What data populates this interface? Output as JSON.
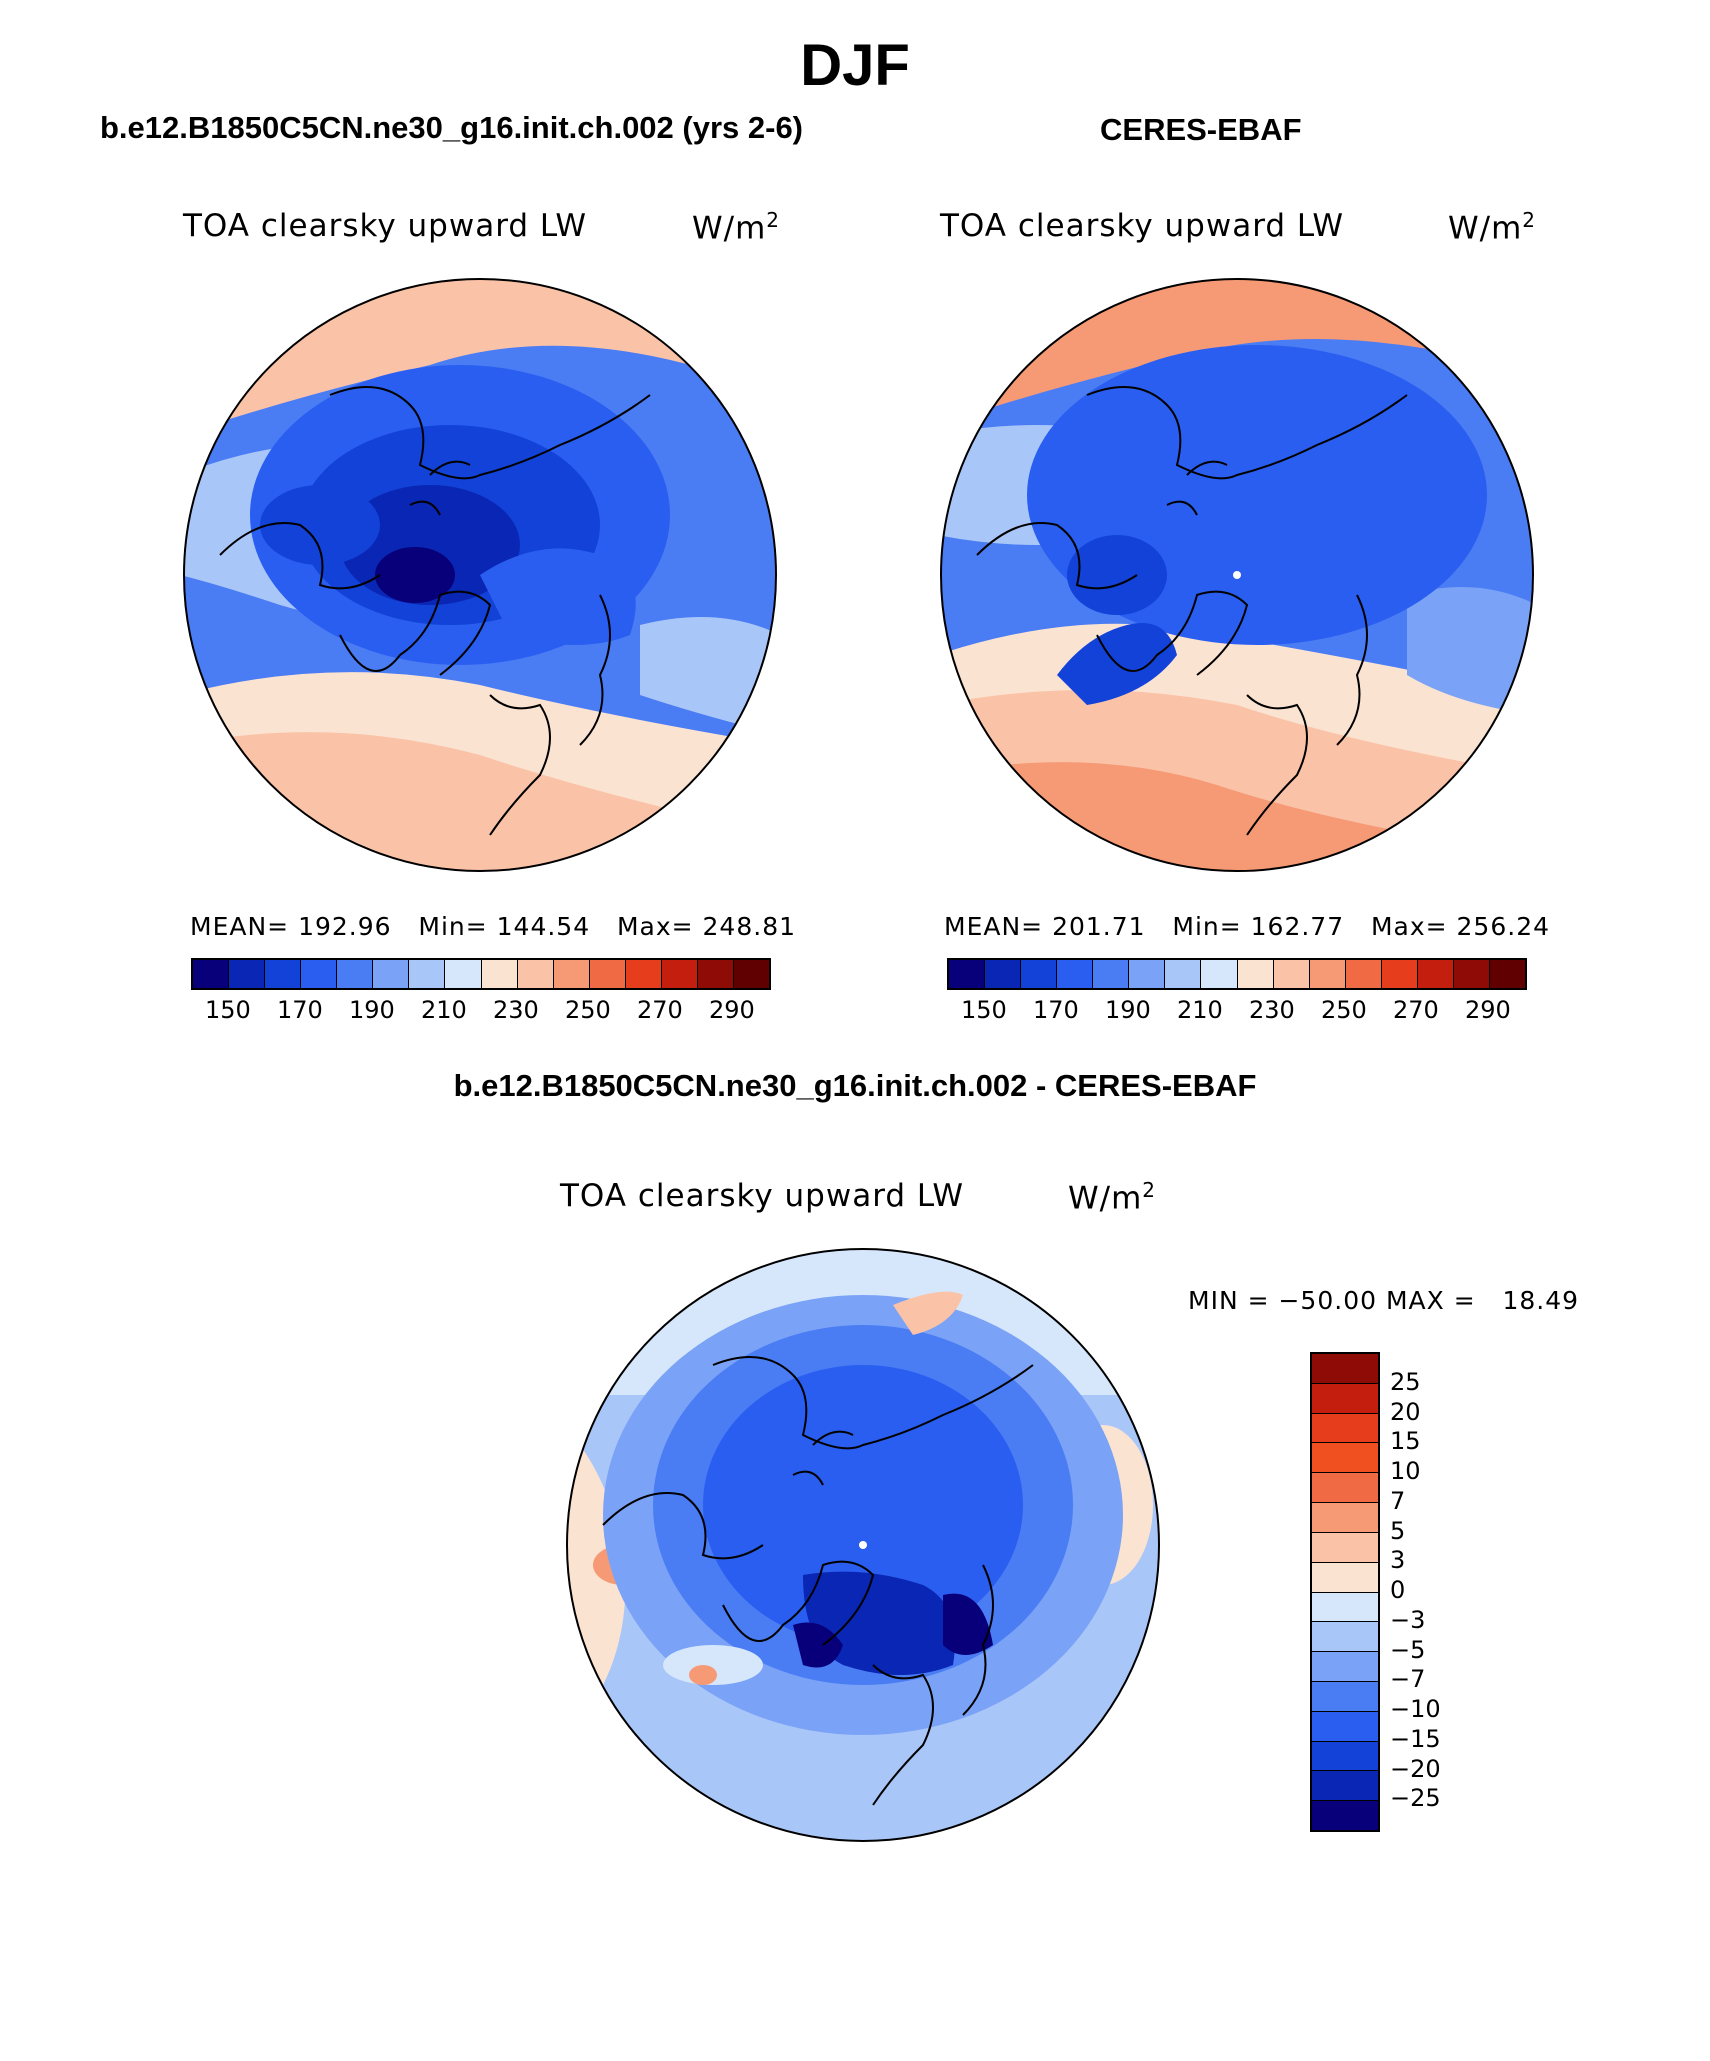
{
  "page": {
    "title": "DJF",
    "left_case": "b.e12.B1850C5CN.ne30_g16.init.ch.002 (yrs 2-6)",
    "right_case": "CERES-EBAF",
    "diff_case": "b.e12.B1850C5CN.ne30_g16.init.ch.002 - CERES-EBAF"
  },
  "panels": {
    "model": {
      "variable": "TOA clearsky upward LW",
      "units_base": "W/m",
      "units_exp": "2",
      "stats": "MEAN= 192.96   Min= 144.54   Max= 248.81"
    },
    "obs": {
      "variable": "TOA clearsky upward LW",
      "units_base": "W/m",
      "units_exp": "2",
      "stats": "MEAN= 201.71   Min= 162.77   Max= 256.24"
    },
    "diff": {
      "variable": "TOA clearsky upward LW",
      "units_base": "W/m",
      "units_exp": "2",
      "stats": "MIN = −50.00 MAX =   18.49"
    }
  },
  "colorbar_main": {
    "labels": [
      "150",
      "170",
      "190",
      "210",
      "230",
      "250",
      "270",
      "290"
    ],
    "colors": [
      "#08007a",
      "#0a26b4",
      "#1242d8",
      "#2a5ef0",
      "#4a7cf4",
      "#7aa2f6",
      "#a9c6f8",
      "#d6e7fb",
      "#fbe3d2",
      "#fac3a8",
      "#f69a76",
      "#f06a43",
      "#e63d1c",
      "#c41f0e",
      "#8f0c06",
      "#600000"
    ]
  },
  "colorbar_diff": {
    "labels": [
      "25",
      "20",
      "15",
      "10",
      "7",
      "5",
      "3",
      "0",
      "−3",
      "−5",
      "−7",
      "−10",
      "−15",
      "−20",
      "−25"
    ],
    "colors": [
      "#8f0c06",
      "#c41f0e",
      "#e63d1c",
      "#f0501f",
      "#f06a43",
      "#f69a76",
      "#fac3a8",
      "#fbe3d2",
      "#d6e7fb",
      "#a9c6f8",
      "#7aa2f6",
      "#4a7cf4",
      "#2a5ef0",
      "#1242d8",
      "#0a26b4",
      "#08007a"
    ]
  }
}
